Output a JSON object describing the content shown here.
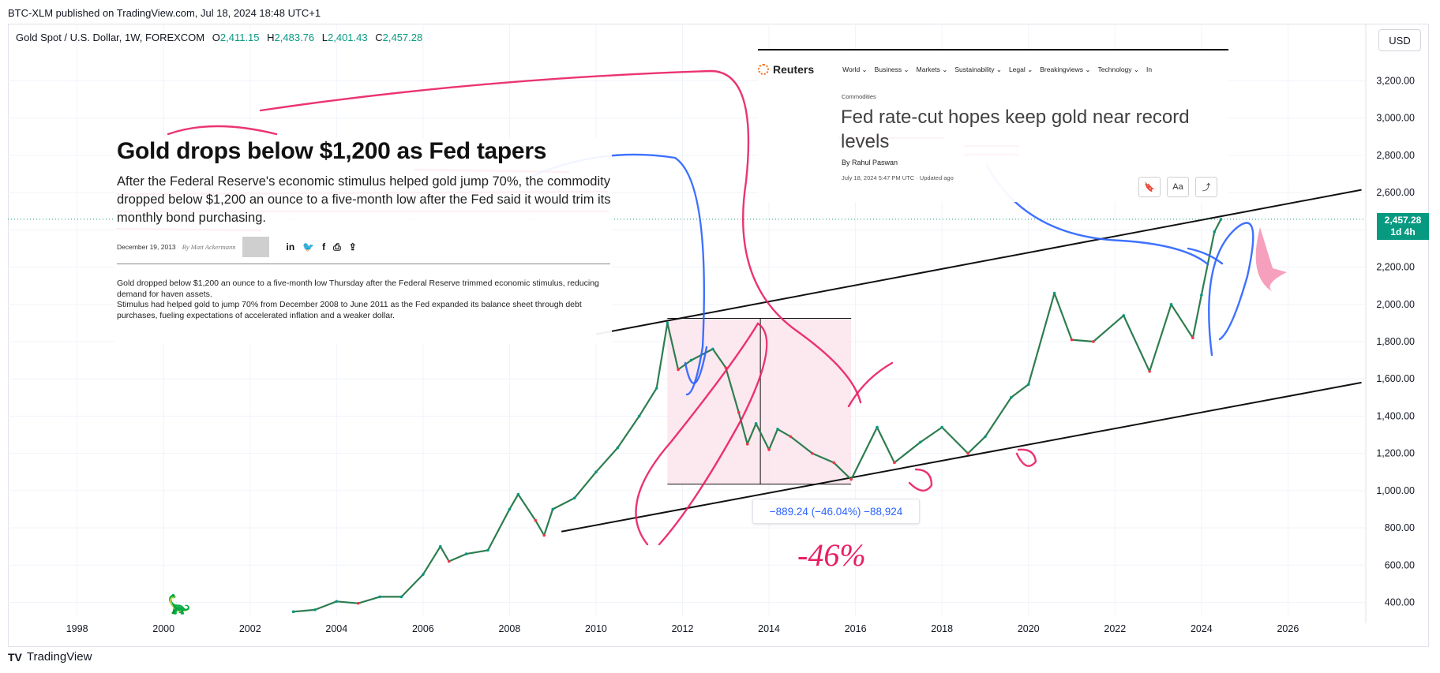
{
  "publisher": "BTC-XLM published on TradingView.com, Jul 18, 2024 18:48 UTC+1",
  "symbol": {
    "name": "Gold Spot / U.S. Dollar, 1W, FOREXCOM",
    "open_label": "O",
    "open": "2,411.15",
    "high_label": "H",
    "high": "2,483.76",
    "low_label": "L",
    "low": "2,401.43",
    "close_label": "C",
    "close": "2,457.28"
  },
  "currency": "USD",
  "last_price": {
    "value": "2,457.28",
    "countdown": "1d 4h"
  },
  "measure": {
    "label": "−889.24 (−46.04%) −88,924"
  },
  "annotation_pct": "-46%",
  "footer_brand": "TradingView",
  "footer_mark": "TV",
  "icons": {
    "dino": "dinosaur-icon"
  },
  "clip_left": {
    "headline": "Gold drops below $1,200 as Fed tapers",
    "deck": "After the Federal Reserve's economic stimulus helped gold jump 70%, the commodity dropped below $1,200 an ounce to a five-month low after the Fed said it would trim its monthly bond purchasing.",
    "date": "December 19, 2013",
    "byline": "By Matt Ackermann",
    "share_icons": [
      "in",
      "🐦",
      "f",
      "⎙",
      "⇪"
    ],
    "body1": "Gold dropped below $1,200 an ounce to a five-month low Thursday after the Federal Reserve trimmed economic stimulus, reducing demand for haven assets.",
    "body2": "Stimulus had helped gold to jump 70% from December 2008 to June 2011 as the Fed expanded its balance sheet through debt purchases, fueling expectations of accelerated inflation and a weaker dollar."
  },
  "clip_right": {
    "logo": "Reuters",
    "nav": [
      "World ⌄",
      "Business ⌄",
      "Markets ⌄",
      "Sustainability ⌄",
      "Legal ⌄",
      "Breakingviews ⌄",
      "Technology ⌄",
      "In"
    ],
    "section": "Commodities",
    "headline": "Fed rate-cut hopes keep gold near record levels",
    "author": "By Rahul Paswan",
    "date": "July 18, 2024 5:47 PM UTC · Updated ago",
    "tools": [
      "🔖",
      "Aa",
      "⤴"
    ]
  },
  "chart_data": {
    "type": "line",
    "title": "Gold Spot / U.S. Dollar, 1W, FOREXCOM",
    "xlabel": "",
    "ylabel": "",
    "x_ticks": [
      "1998",
      "2000",
      "2002",
      "2004",
      "2006",
      "2008",
      "2010",
      "2012",
      "2014",
      "2016",
      "2018",
      "2020",
      "2022",
      "2024",
      "2026"
    ],
    "y_ticks": [
      "400.00",
      "600.00",
      "800.00",
      "1,000.00",
      "1,200.00",
      "1,400.00",
      "1,600.00",
      "1,800.00",
      "2,000.00",
      "2,200.00",
      "2,400.00",
      "2,600.00",
      "2,800.00",
      "3,000.00",
      "3,200.00"
    ],
    "xlim": [
      1996.4,
      2027.8
    ],
    "ylim": [
      330,
      3380
    ],
    "series": [
      {
        "x": [
          2003.0,
          2003.5,
          2004.0,
          2004.5,
          2005.0,
          2005.5,
          2006.0,
          2006.4,
          2006.6,
          2007.0,
          2007.5,
          2008.0,
          2008.2,
          2008.6,
          2008.8,
          2009.0,
          2009.5,
          2010.0,
          2010.5,
          2011.0,
          2011.4,
          2011.65,
          2011.9,
          2012.2,
          2012.7,
          2013.0,
          2013.3,
          2013.5,
          2013.7,
          2014.0,
          2014.2,
          2014.5,
          2015.0,
          2015.5,
          2015.9,
          2016.5,
          2016.9,
          2017.5,
          2018.0,
          2018.6,
          2019.0,
          2019.6,
          2020.0,
          2020.6,
          2021.0,
          2021.5,
          2022.2,
          2022.8,
          2023.3,
          2023.8,
          2024.0,
          2024.3,
          2024.45
        ],
        "values": [
          350,
          360,
          405,
          395,
          430,
          430,
          550,
          700,
          620,
          660,
          680,
          900,
          980,
          840,
          760,
          900,
          960,
          1100,
          1230,
          1400,
          1550,
          1900,
          1650,
          1700,
          1760,
          1660,
          1420,
          1250,
          1360,
          1220,
          1330,
          1290,
          1200,
          1150,
          1060,
          1340,
          1150,
          1260,
          1340,
          1200,
          1290,
          1500,
          1570,
          2060,
          1810,
          1800,
          1940,
          1640,
          2000,
          1820,
          2050,
          2390,
          2457
        ]
      }
    ],
    "grid": true,
    "legend": "none"
  }
}
